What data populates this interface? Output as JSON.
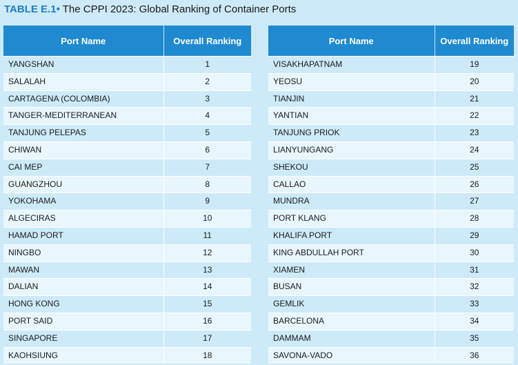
{
  "caption": {
    "label": "TABLE E.1",
    "bullet": "•",
    "title": "The CPPI 2023: Global Ranking of Container Ports"
  },
  "columns": {
    "port_name": "Port Name",
    "overall_ranking": "Overall Ranking"
  },
  "left_rows": [
    {
      "name": "YANGSHAN",
      "rank": "1"
    },
    {
      "name": "SALALAH",
      "rank": "2"
    },
    {
      "name": "CARTAGENA (COLOMBIA)",
      "rank": "3"
    },
    {
      "name": "TANGER-MEDITERRANEAN",
      "rank": "4"
    },
    {
      "name": "TANJUNG PELEPAS",
      "rank": "5"
    },
    {
      "name": "CHIWAN",
      "rank": "6"
    },
    {
      "name": "CAI MEP",
      "rank": "7"
    },
    {
      "name": "GUANGZHOU",
      "rank": "8"
    },
    {
      "name": "YOKOHAMA",
      "rank": "9"
    },
    {
      "name": "ALGECIRAS",
      "rank": "10"
    },
    {
      "name": "HAMAD PORT",
      "rank": "11"
    },
    {
      "name": "NINGBO",
      "rank": "12"
    },
    {
      "name": "MAWAN",
      "rank": "13"
    },
    {
      "name": "DALIAN",
      "rank": "14"
    },
    {
      "name": "HONG KONG",
      "rank": "15"
    },
    {
      "name": "PORT SAID",
      "rank": "16"
    },
    {
      "name": "SINGAPORE",
      "rank": "17"
    },
    {
      "name": "KAOHSIUNG",
      "rank": "18"
    }
  ],
  "right_rows": [
    {
      "name": "VISAKHAPATNAM",
      "rank": "19"
    },
    {
      "name": "YEOSU",
      "rank": "20"
    },
    {
      "name": "TIANJIN",
      "rank": "21"
    },
    {
      "name": "YANTIAN",
      "rank": "22"
    },
    {
      "name": "TANJUNG PRIOK",
      "rank": "23"
    },
    {
      "name": "LIANYUNGANG",
      "rank": "24"
    },
    {
      "name": "SHEKOU",
      "rank": "25"
    },
    {
      "name": "CALLAO",
      "rank": "26"
    },
    {
      "name": "MUNDRA",
      "rank": "27"
    },
    {
      "name": "PORT KLANG",
      "rank": "28"
    },
    {
      "name": "KHALIFA PORT",
      "rank": "29"
    },
    {
      "name": "KING ABDULLAH PORT",
      "rank": "30"
    },
    {
      "name": "XIAMEN",
      "rank": "31"
    },
    {
      "name": "BUSAN",
      "rank": "32"
    },
    {
      "name": "GEMLIK",
      "rank": "33"
    },
    {
      "name": "BARCELONA",
      "rank": "34"
    },
    {
      "name": "DAMMAM",
      "rank": "35"
    },
    {
      "name": "SAVONA-VADO",
      "rank": "36"
    }
  ]
}
